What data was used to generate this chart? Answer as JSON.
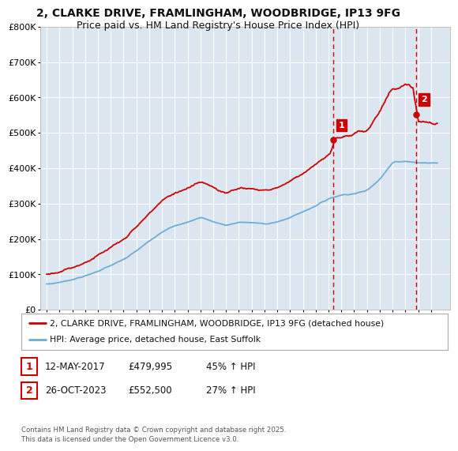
{
  "title": "2, CLARKE DRIVE, FRAMLINGHAM, WOODBRIDGE, IP13 9FG",
  "subtitle": "Price paid vs. HM Land Registry's House Price Index (HPI)",
  "title_fontsize": 10,
  "subtitle_fontsize": 9,
  "background_color": "#ffffff",
  "plot_bg_color": "#dce6f1",
  "grid_color": "#ffffff",
  "red_color": "#cc0000",
  "blue_color": "#6baed6",
  "red_label": "2, CLARKE DRIVE, FRAMLINGHAM, WOODBRIDGE, IP13 9FG (detached house)",
  "blue_label": "HPI: Average price, detached house, East Suffolk",
  "transaction1": {
    "num": "1",
    "date": "12-MAY-2017",
    "price": "£479,995",
    "hpi": "45% ↑ HPI"
  },
  "transaction2": {
    "num": "2",
    "date": "26-OCT-2023",
    "price": "£552,500",
    "hpi": "27% ↑ HPI"
  },
  "footer": "Contains HM Land Registry data © Crown copyright and database right 2025.\nThis data is licensed under the Open Government Licence v3.0.",
  "vline1_x": 2017.36,
  "vline2_x": 2023.82,
  "marker1_red_y": 479995,
  "marker2_red_y": 552500,
  "ylim": [
    0,
    800000
  ],
  "yticks": [
    0,
    100000,
    200000,
    300000,
    400000,
    500000,
    600000,
    700000,
    800000
  ],
  "ytick_labels": [
    "£0",
    "£100K",
    "£200K",
    "£300K",
    "£400K",
    "£500K",
    "£600K",
    "£700K",
    "£800K"
  ],
  "xlim": [
    1994.5,
    2026.5
  ],
  "xticks": [
    1995,
    1996,
    1997,
    1998,
    1999,
    2000,
    2001,
    2002,
    2003,
    2004,
    2005,
    2006,
    2007,
    2008,
    2009,
    2010,
    2011,
    2012,
    2013,
    2014,
    2015,
    2016,
    2017,
    2018,
    2019,
    2020,
    2021,
    2022,
    2023,
    2024,
    2025
  ]
}
